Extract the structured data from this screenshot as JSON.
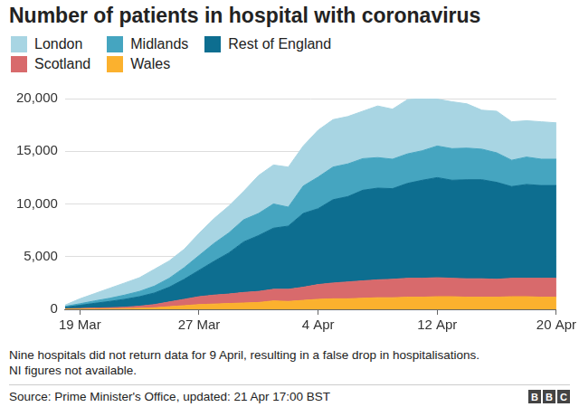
{
  "chart_data": {
    "type": "area",
    "title": "Number of patients in hospital with coronavirus",
    "notes": [
      "Nine hospitals did not return data for 9 April, resulting in a false drop in hospitalisations.",
      "NI figures not available."
    ],
    "source": "Source: Prime Minister's Office, updated: 21 Apr 17:00 BST",
    "logo": "BBC",
    "stacked": true,
    "grid": true,
    "legend": "top",
    "categories": [
      null,
      "19 Mar",
      null,
      null,
      null,
      null,
      null,
      null,
      null,
      "27 Mar",
      null,
      null,
      null,
      null,
      null,
      null,
      null,
      "4 Apr",
      null,
      null,
      null,
      null,
      null,
      null,
      null,
      "12 Apr",
      null,
      null,
      null,
      null,
      null,
      null,
      null,
      "20 Apr"
    ],
    "ylim": [
      0,
      20000
    ],
    "yticks": [
      0,
      {
        "value": 5000,
        "label": "5,000"
      },
      {
        "value": 10000,
        "label": "10,000"
      },
      {
        "value": 15000,
        "label": "15,000"
      },
      {
        "value": 20000,
        "label": "20,000"
      }
    ],
    "series": [
      {
        "name": "London",
        "color": "#a8d5e3",
        "values": [
          120,
          470,
          700,
          950,
          1150,
          1300,
          1600,
          1650,
          1750,
          2100,
          2350,
          2550,
          2700,
          3600,
          3700,
          3800,
          3800,
          4450,
          4500,
          4500,
          4500,
          4900,
          4750,
          5150,
          4950,
          4450,
          4450,
          4200,
          3700,
          3950,
          3650,
          3450,
          3550,
          3450
        ]
      },
      {
        "name": "Midlands",
        "color": "#45a5c0",
        "values": [
          80,
          150,
          230,
          300,
          400,
          500,
          650,
          850,
          1100,
          1400,
          1700,
          1900,
          2100,
          2100,
          2300,
          1800,
          2600,
          3000,
          3100,
          3100,
          3000,
          2900,
          2800,
          2800,
          2800,
          3000,
          3000,
          3000,
          2900,
          2800,
          2500,
          2600,
          2500,
          2500
        ]
      },
      {
        "name": "Rest of England",
        "color": "#0d6e90",
        "values": [
          150,
          300,
          450,
          600,
          750,
          900,
          1100,
          1400,
          1900,
          2500,
          3200,
          3900,
          4800,
          5300,
          5800,
          6000,
          7000,
          7200,
          7900,
          8100,
          8600,
          8700,
          8600,
          9000,
          9300,
          9500,
          9300,
          9400,
          9400,
          9200,
          8700,
          8900,
          8800,
          8800
        ]
      },
      {
        "name": "Scotland",
        "color": "#d86a6c",
        "values": [
          30,
          50,
          80,
          100,
          130,
          200,
          300,
          450,
          600,
          750,
          850,
          900,
          1000,
          1050,
          1100,
          1150,
          1250,
          1400,
          1500,
          1600,
          1650,
          1700,
          1750,
          1800,
          1800,
          1800,
          1750,
          1750,
          1750,
          1700,
          1750,
          1750,
          1800,
          1800
        ]
      },
      {
        "name": "Wales",
        "color": "#fbb12e",
        "values": [
          20,
          30,
          40,
          50,
          70,
          100,
          150,
          250,
          350,
          450,
          500,
          550,
          600,
          650,
          800,
          750,
          850,
          950,
          1000,
          1000,
          1050,
          1100,
          1100,
          1150,
          1150,
          1200,
          1200,
          1150,
          1150,
          1150,
          1200,
          1200,
          1150,
          1150
        ]
      }
    ]
  }
}
